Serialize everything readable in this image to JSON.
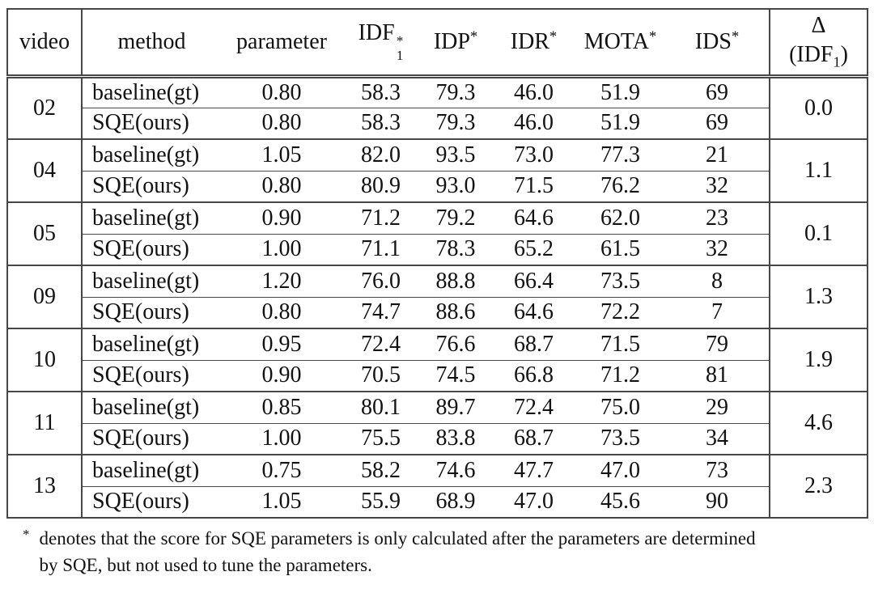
{
  "theme": {
    "background": "#ffffff",
    "text_color": "#121212",
    "rule_color": "#474747"
  },
  "table": {
    "headers": {
      "video": "video",
      "method": "method",
      "parameter": "parameter",
      "idf1": {
        "base": "IDF",
        "sup": "*",
        "sub": "1"
      },
      "idp": {
        "base": "IDP",
        "sup": "*"
      },
      "idr": {
        "base": "IDR",
        "sup": "*"
      },
      "mota": {
        "base": "MOTA",
        "sup": "*"
      },
      "ids": {
        "base": "IDS",
        "sup": "*"
      },
      "delta": {
        "symbol": "Δ",
        "of_open": "(IDF",
        "of_sub": "1",
        "of_close": ")"
      }
    },
    "groups": [
      {
        "video": "02",
        "delta": "0.0",
        "rows": [
          {
            "method": "baseline(gt)",
            "parameter": "0.80",
            "idf1": "58.3",
            "idp": "79.3",
            "idr": "46.0",
            "mota": "51.9",
            "ids": "69"
          },
          {
            "method": "SQE(ours)",
            "parameter": "0.80",
            "idf1": "58.3",
            "idp": "79.3",
            "idr": "46.0",
            "mota": "51.9",
            "ids": "69"
          }
        ]
      },
      {
        "video": "04",
        "delta": "1.1",
        "rows": [
          {
            "method": "baseline(gt)",
            "parameter": "1.05",
            "idf1": "82.0",
            "idp": "93.5",
            "idr": "73.0",
            "mota": "77.3",
            "ids": "21"
          },
          {
            "method": "SQE(ours)",
            "parameter": "0.80",
            "idf1": "80.9",
            "idp": "93.0",
            "idr": "71.5",
            "mota": "76.2",
            "ids": "32"
          }
        ]
      },
      {
        "video": "05",
        "delta": "0.1",
        "rows": [
          {
            "method": "baseline(gt)",
            "parameter": "0.90",
            "idf1": "71.2",
            "idp": "79.2",
            "idr": "64.6",
            "mota": "62.0",
            "ids": "23"
          },
          {
            "method": "SQE(ours)",
            "parameter": "1.00",
            "idf1": "71.1",
            "idp": "78.3",
            "idr": "65.2",
            "mota": "61.5",
            "ids": "32"
          }
        ]
      },
      {
        "video": "09",
        "delta": "1.3",
        "rows": [
          {
            "method": "baseline(gt)",
            "parameter": "1.20",
            "idf1": "76.0",
            "idp": "88.8",
            "idr": "66.4",
            "mota": "73.5",
            "ids": "8"
          },
          {
            "method": "SQE(ours)",
            "parameter": "0.80",
            "idf1": "74.7",
            "idp": "88.6",
            "idr": "64.6",
            "mota": "72.2",
            "ids": "7"
          }
        ]
      },
      {
        "video": "10",
        "delta": "1.9",
        "rows": [
          {
            "method": "baseline(gt)",
            "parameter": "0.95",
            "idf1": "72.4",
            "idp": "76.6",
            "idr": "68.7",
            "mota": "71.5",
            "ids": "79"
          },
          {
            "method": "SQE(ours)",
            "parameter": "0.90",
            "idf1": "70.5",
            "idp": "74.5",
            "idr": "66.8",
            "mota": "71.2",
            "ids": "81"
          }
        ]
      },
      {
        "video": "11",
        "delta": "4.6",
        "rows": [
          {
            "method": "baseline(gt)",
            "parameter": "0.85",
            "idf1": "80.1",
            "idp": "89.7",
            "idr": "72.4",
            "mota": "75.0",
            "ids": "29"
          },
          {
            "method": "SQE(ours)",
            "parameter": "1.00",
            "idf1": "75.5",
            "idp": "83.8",
            "idr": "68.7",
            "mota": "73.5",
            "ids": "34"
          }
        ]
      },
      {
        "video": "13",
        "delta": "2.3",
        "rows": [
          {
            "method": "baseline(gt)",
            "parameter": "0.75",
            "idf1": "58.2",
            "idp": "74.6",
            "idr": "47.7",
            "mota": "47.0",
            "ids": "73"
          },
          {
            "method": "SQE(ours)",
            "parameter": "1.05",
            "idf1": "55.9",
            "idp": "68.9",
            "idr": "47.0",
            "mota": "45.6",
            "ids": "90"
          }
        ]
      }
    ]
  },
  "footnote": {
    "marker": "*",
    "line1": "denotes that the score for SQE parameters is only calculated after the parameters are determined",
    "line2": "by SQE, but not used to tune the parameters."
  }
}
